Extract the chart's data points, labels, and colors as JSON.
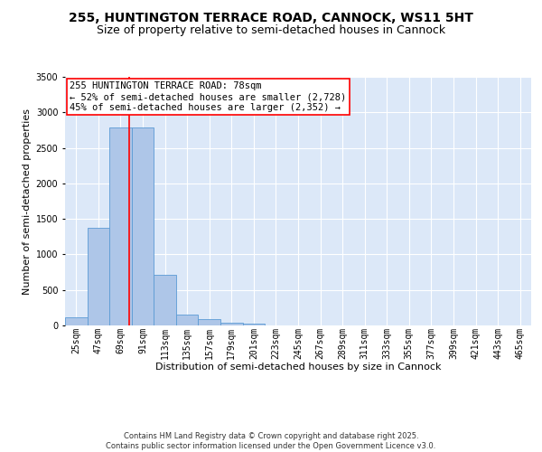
{
  "title": "255, HUNTINGTON TERRACE ROAD, CANNOCK, WS11 5HT",
  "subtitle": "Size of property relative to semi-detached houses in Cannock",
  "xlabel": "Distribution of semi-detached houses by size in Cannock",
  "ylabel": "Number of semi-detached properties",
  "bin_labels": [
    "25sqm",
    "47sqm",
    "69sqm",
    "91sqm",
    "113sqm",
    "135sqm",
    "157sqm",
    "179sqm",
    "201sqm",
    "223sqm",
    "245sqm",
    "267sqm",
    "289sqm",
    "311sqm",
    "333sqm",
    "355sqm",
    "377sqm",
    "399sqm",
    "421sqm",
    "443sqm",
    "465sqm"
  ],
  "bar_values": [
    120,
    1380,
    2790,
    2790,
    710,
    155,
    90,
    35,
    25,
    0,
    0,
    0,
    0,
    0,
    0,
    0,
    0,
    0,
    0,
    0,
    0
  ],
  "bar_color": "#aec6e8",
  "bar_edge_color": "#5b9bd5",
  "property_value": 78,
  "annotation_text": "255 HUNTINGTON TERRACE ROAD: 78sqm\n← 52% of semi-detached houses are smaller (2,728)\n45% of semi-detached houses are larger (2,352) →",
  "annotation_box_color": "white",
  "annotation_box_edge_color": "red",
  "ylim": [
    0,
    3500
  ],
  "background_color": "#dce8f8",
  "grid_color": "white",
  "footnote": "Contains HM Land Registry data © Crown copyright and database right 2025.\nContains public sector information licensed under the Open Government Licence v3.0.",
  "title_fontsize": 10,
  "subtitle_fontsize": 9,
  "axis_label_fontsize": 8,
  "tick_fontsize": 7,
  "annotation_fontsize": 7.5
}
